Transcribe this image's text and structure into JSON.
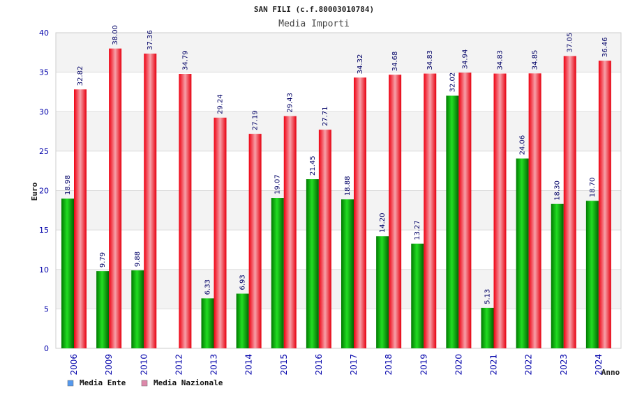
{
  "chart_data": {
    "type": "bar",
    "title": "SAN FILI (c.f.80003010784)",
    "subtitle": "Media Importi",
    "ylabel": "Euro",
    "xlabel": "Anno",
    "ylim": [
      0,
      40
    ],
    "yticks": [
      0,
      5,
      10,
      15,
      20,
      25,
      30,
      35,
      40
    ],
    "grid": true,
    "legend_position": "bottom-left",
    "categories": [
      "2006",
      "2009",
      "2010",
      "2012",
      "2013",
      "2014",
      "2015",
      "2016",
      "2017",
      "2018",
      "2019",
      "2020",
      "2021",
      "2022",
      "2023",
      "2024"
    ],
    "series": [
      {
        "name": "Media Ente",
        "color": "#00aa00",
        "legend_color": "#5599ee",
        "values": [
          18.98,
          9.79,
          9.88,
          null,
          6.33,
          6.93,
          19.07,
          21.45,
          18.88,
          14.2,
          13.27,
          32.02,
          5.13,
          24.06,
          18.3,
          18.7
        ],
        "labels": [
          "18.98",
          "9.79",
          "9.88",
          "",
          "6.33",
          "6.93",
          "19.07",
          "21.45",
          "18.88",
          "14.20",
          "13.27",
          "32.02",
          "5.13",
          "24.06",
          "18.30",
          "18.70"
        ]
      },
      {
        "name": "Media Nazionale",
        "color": "#ee1122",
        "legend_color": "#dd88aa",
        "values": [
          32.82,
          38.0,
          37.36,
          34.79,
          29.24,
          27.19,
          29.43,
          27.71,
          34.32,
          34.68,
          34.83,
          34.94,
          34.83,
          34.85,
          37.05,
          36.46
        ],
        "labels": [
          "32.82",
          "38.00",
          "37.36",
          "34.79",
          "29.24",
          "27.19",
          "29.43",
          "27.71",
          "34.32",
          "34.68",
          "34.83",
          "34.94",
          "34.83",
          "34.85",
          "37.05",
          "36.46"
        ]
      }
    ]
  }
}
